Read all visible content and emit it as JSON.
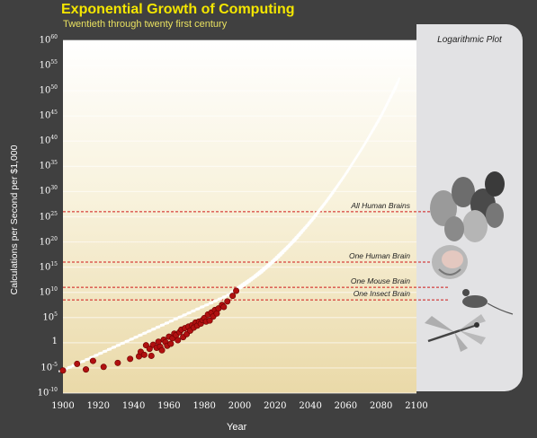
{
  "chart_data": {
    "type": "scatter",
    "title": "Exponential Growth of Computing",
    "subtitle": "Twentieth through twenty first century",
    "xlabel": "Year",
    "ylabel": "Calculations per Second per $1,000",
    "yscale": "log",
    "xlim": [
      1900,
      2100
    ],
    "ylim": [
      "10^-10",
      "10^60"
    ],
    "x_ticks": [
      1900,
      1920,
      1940,
      1960,
      1980,
      2000,
      2020,
      2040,
      2060,
      2080,
      2100
    ],
    "y_ticks": [
      {
        "base": "10",
        "exp": "60",
        "value": 60
      },
      {
        "base": "10",
        "exp": "55",
        "value": 55
      },
      {
        "base": "10",
        "exp": "50",
        "value": 50
      },
      {
        "base": "10",
        "exp": "45",
        "value": 45
      },
      {
        "base": "10",
        "exp": "40",
        "value": 40
      },
      {
        "base": "10",
        "exp": "35",
        "value": 35
      },
      {
        "base": "10",
        "exp": "30",
        "value": 30
      },
      {
        "base": "10",
        "exp": "25",
        "value": 25
      },
      {
        "base": "10",
        "exp": "20",
        "value": 20
      },
      {
        "base": "10",
        "exp": "15",
        "value": 15
      },
      {
        "base": "10",
        "exp": "10",
        "value": 10
      },
      {
        "base": "10",
        "exp": "5",
        "value": 5
      },
      {
        "base": "1",
        "exp": "",
        "value": 0
      },
      {
        "base": "10",
        "exp": "-5",
        "value": -5
      },
      {
        "base": "10",
        "exp": "-10",
        "value": -10
      }
    ],
    "grid": true,
    "series": [
      {
        "kind": "historical",
        "color": "#b01010",
        "points": [
          [
            1900,
            -5.5
          ],
          [
            1908,
            -4.2
          ],
          [
            1913,
            -5.3
          ],
          [
            1917,
            -3.6
          ],
          [
            1923,
            -4.8
          ],
          [
            1931,
            -4.0
          ],
          [
            1938,
            -3.2
          ],
          [
            1943,
            -2.7
          ],
          [
            1944,
            -1.8
          ],
          [
            1946,
            -2.4
          ],
          [
            1947,
            -0.5
          ],
          [
            1949,
            -1.2
          ],
          [
            1950,
            -2.6
          ],
          [
            1951,
            -0.4
          ],
          [
            1953,
            -1.0
          ],
          [
            1954,
            0.2
          ],
          [
            1955,
            -0.8
          ],
          [
            1956,
            -1.5
          ],
          [
            1957,
            0.6
          ],
          [
            1958,
            0.1
          ],
          [
            1959,
            -0.6
          ],
          [
            1960,
            1.2
          ],
          [
            1961,
            -0.2
          ],
          [
            1962,
            0.9
          ],
          [
            1963,
            1.8
          ],
          [
            1964,
            1.5
          ],
          [
            1965,
            0.5
          ],
          [
            1966,
            2.1
          ],
          [
            1967,
            2.6
          ],
          [
            1968,
            1.1
          ],
          [
            1969,
            2.9
          ],
          [
            1970,
            1.7
          ],
          [
            1971,
            3.2
          ],
          [
            1972,
            2.4
          ],
          [
            1973,
            3.5
          ],
          [
            1974,
            3.0
          ],
          [
            1975,
            4.0
          ],
          [
            1976,
            3.4
          ],
          [
            1977,
            4.2
          ],
          [
            1978,
            3.8
          ],
          [
            1979,
            4.5
          ],
          [
            1980,
            4.9
          ],
          [
            1981,
            4.2
          ],
          [
            1982,
            5.6
          ],
          [
            1983,
            4.4
          ],
          [
            1984,
            6.0
          ],
          [
            1985,
            5.2
          ],
          [
            1986,
            6.5
          ],
          [
            1987,
            5.8
          ],
          [
            1988,
            6.8
          ],
          [
            1990,
            7.5
          ],
          [
            1991,
            7.1
          ],
          [
            1993,
            8.2
          ],
          [
            1996,
            9.3
          ],
          [
            1998,
            10.3
          ]
        ]
      },
      {
        "kind": "projection",
        "color": "#ffffff",
        "points": [
          [
            1998,
            10.5
          ],
          [
            2010,
            13.5
          ],
          [
            2020,
            16.5
          ],
          [
            2030,
            20.0
          ],
          [
            2040,
            24.0
          ],
          [
            2050,
            28.5
          ],
          [
            2060,
            33.5
          ],
          [
            2070,
            39.0
          ],
          [
            2080,
            45.0
          ],
          [
            2090,
            52.0
          ]
        ]
      }
    ],
    "reference_lines": [
      {
        "label": "All Human Brains",
        "value": 26
      },
      {
        "label": "One Human Brain",
        "value": 16
      },
      {
        "label": "One Mouse Brain",
        "value": 11
      },
      {
        "label": "One Insect Brain",
        "value": 8.5
      }
    ],
    "side_panel_title": "Logarithmic Plot",
    "icons": [
      "human-faces-icon",
      "brain-icon",
      "mouse-icon",
      "dragonfly-icon"
    ],
    "colors": {
      "background": "#404040",
      "title": "#f4e600",
      "reference_line": "#d01818",
      "panel": "#e2e2e4"
    }
  }
}
